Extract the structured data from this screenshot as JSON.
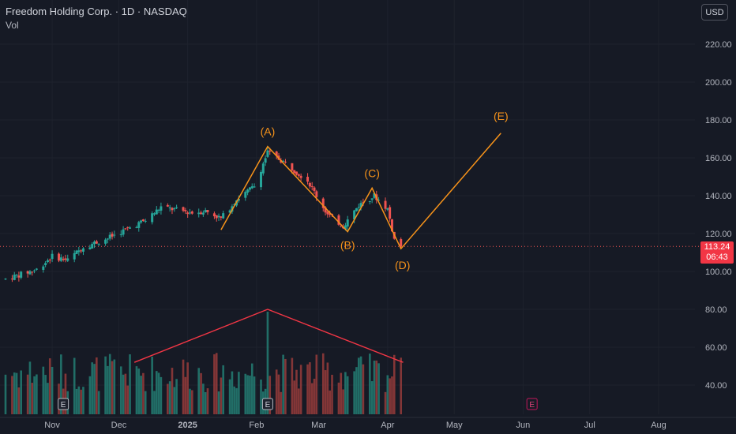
{
  "header": {
    "title": "Freedom Holding Corp. · 1D · NASDAQ",
    "volume_label": "Vol"
  },
  "currency_button": "USD",
  "last_price": {
    "value": "113.24",
    "countdown": "06:43"
  },
  "colors": {
    "up": "#26a69a",
    "down": "#ef5350",
    "annotation": "#f7931a",
    "volume_annotation": "#f23645",
    "background": "#161a25"
  },
  "chart_data": {
    "type": "candlestick",
    "y_axis": {
      "ticks": [
        40,
        60,
        80,
        100,
        120,
        140,
        160,
        180,
        200,
        220
      ],
      "tick_labels": [
        "40.00",
        "60.00",
        "80.00",
        "100.00",
        "120.00",
        "140.00",
        "160.00",
        "180.00",
        "200.00",
        "220.00"
      ]
    },
    "x_axis": {
      "labels": [
        "Nov",
        "Dec",
        "2025",
        "Feb",
        "Mar",
        "Apr",
        "May",
        "Jun",
        "Jul",
        "Aug"
      ]
    },
    "price_path": [
      [
        "2024-10-11",
        96
      ],
      [
        "2024-10-25",
        101
      ],
      [
        "2024-11-01",
        108
      ],
      [
        "2024-11-08",
        106
      ],
      [
        "2024-11-15",
        113
      ],
      [
        "2024-11-25",
        117
      ],
      [
        "2024-12-04",
        122
      ],
      [
        "2024-12-13",
        127
      ],
      [
        "2024-12-20",
        134
      ],
      [
        "2025-01-03",
        131
      ],
      [
        "2025-01-09",
        132
      ],
      [
        "2025-01-16",
        128
      ],
      [
        "2025-01-23",
        138
      ],
      [
        "2025-01-31",
        145
      ],
      [
        "2025-02-06",
        163
      ],
      [
        "2025-02-13",
        158
      ],
      [
        "2025-02-24",
        148
      ],
      [
        "2025-03-05",
        130
      ],
      [
        "2025-03-12",
        124
      ],
      [
        "2025-03-19",
        135
      ],
      [
        "2025-03-26",
        140
      ],
      [
        "2025-04-01",
        133
      ],
      [
        "2025-04-04",
        117
      ],
      [
        "2025-04-07",
        113.24
      ]
    ],
    "wave_points": [
      {
        "label": "",
        "date": "2025-01-16",
        "price": 122
      },
      {
        "label": "(A)",
        "date": "2025-02-06",
        "price": 166
      },
      {
        "label": "(B)",
        "date": "2025-03-14",
        "price": 121
      },
      {
        "label": "(C)",
        "date": "2025-03-25",
        "price": 144
      },
      {
        "label": "(D)",
        "date": "2025-04-07",
        "price": 112
      },
      {
        "label": "(E)",
        "date": "2025-05-22",
        "price": 173
      }
    ],
    "volume_trend": [
      {
        "date": "2024-12-08",
        "level": 52
      },
      {
        "date": "2025-02-06",
        "level": 80
      },
      {
        "date": "2025-04-08",
        "level": 52
      }
    ],
    "earnings_markers": [
      {
        "date": "2024-11-06",
        "label": "E",
        "style": "past"
      },
      {
        "date": "2025-02-06",
        "label": "E",
        "style": "past"
      },
      {
        "date": "2025-06-05",
        "label": "E",
        "style": "upcoming"
      }
    ],
    "last_price": 113.24
  }
}
